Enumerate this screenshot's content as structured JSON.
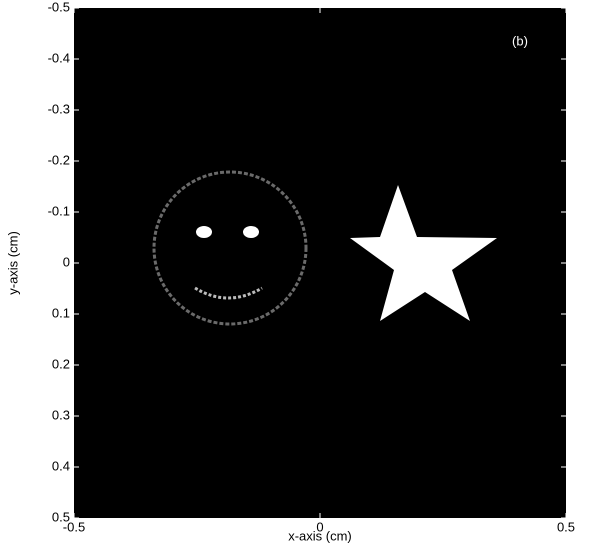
{
  "chart_data": {
    "type": "image",
    "xlabel": "x-axis (cm)",
    "ylabel": "y-axis (cm)",
    "annotation": "(b)",
    "xlim": [
      -0.5,
      0.5
    ],
    "xticks": [
      -0.5,
      0,
      0.5
    ],
    "ylim": [
      -0.5,
      0.5
    ],
    "yticks": [
      -0.5,
      -0.4,
      -0.3,
      -0.2,
      -0.1,
      0,
      0.1,
      0.2,
      0.3,
      0.4,
      0.5
    ],
    "y_reversed": true
  }
}
